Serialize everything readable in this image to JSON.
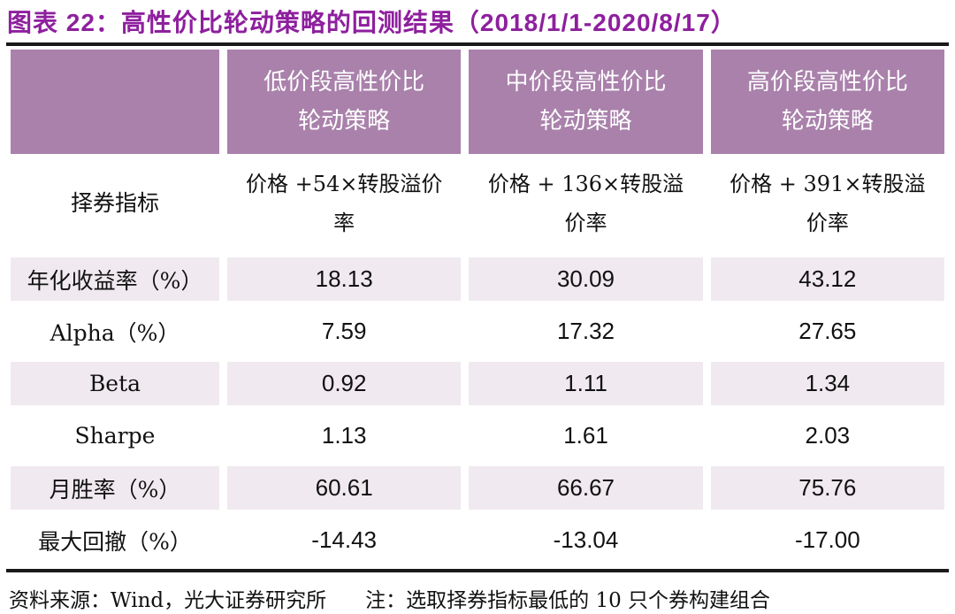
{
  "title": "图表 22：高性价比轮动策略的回测结果（2018/1/1-2020/8/17）",
  "colors": {
    "title_color": "#8E1F9E",
    "header_bg": "#A981AB",
    "header_text": "#FFFFFF",
    "row_alt_bg": "#F0E9EF",
    "rule_color": "#1A1A1A"
  },
  "table": {
    "column_headers": [
      "",
      "低价段高性价比轮动策略",
      "中价段高性价比轮动策略",
      "高价段高性价比轮动策略"
    ],
    "metric_row": {
      "label": "择券指标",
      "values": [
        "价格 +54×转股溢价率",
        "价格 + 136×转股溢价率",
        "价格 + 391×转股溢价率"
      ]
    },
    "rows": [
      {
        "label": "年化收益率（%）",
        "values": [
          "18.13",
          "30.09",
          "43.12"
        ],
        "shaded": true
      },
      {
        "label": "Alpha（%）",
        "values": [
          "7.59",
          "17.32",
          "27.65"
        ],
        "shaded": false
      },
      {
        "label": "Beta",
        "values": [
          "0.92",
          "1.11",
          "1.34"
        ],
        "shaded": true
      },
      {
        "label": "Sharpe",
        "values": [
          "1.13",
          "1.61",
          "2.03"
        ],
        "shaded": false
      },
      {
        "label": "月胜率（%）",
        "values": [
          "60.61",
          "66.67",
          "75.76"
        ],
        "shaded": true
      },
      {
        "label": "最大回撤（%）",
        "values": [
          "-14.43",
          "-13.04",
          "-17.00"
        ],
        "shaded": false
      }
    ]
  },
  "footer": {
    "source": "资料来源：Wind，光大证券研究所",
    "note": "注：选取择券指标最低的 10 只个券构建组合"
  }
}
